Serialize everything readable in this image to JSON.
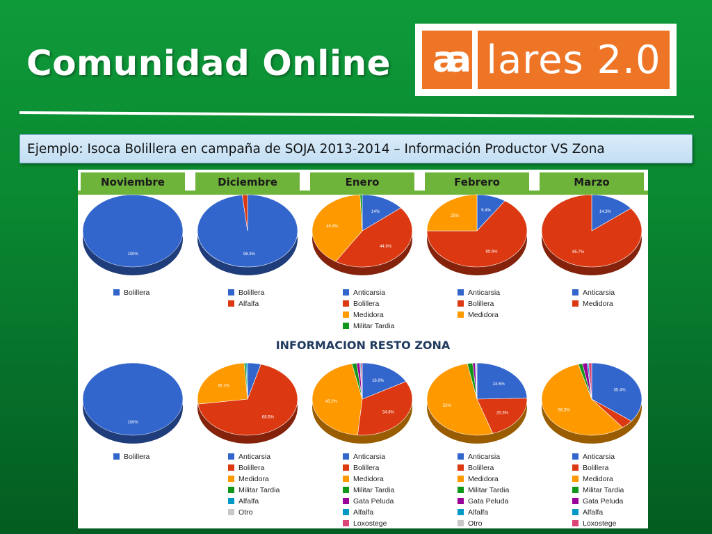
{
  "slide": {
    "title": "Comunidad Online",
    "logo_mark": "aa",
    "logo_text": "lares 2.0",
    "subtitle": "Ejemplo: Isoca Bolillera en campaña de SOJA 2013-2014 – Información Productor VS Zona",
    "section_label": "INFORMACION RESTO ZONA"
  },
  "colors": {
    "Anticarsia": "#3366cc",
    "Bolillera": "#3366cc",
    "Alfalfa": "#dc3912",
    "Medidora": "#ff9900",
    "Medidora_top": "#dc3912",
    "Militar Tardia": "#109618",
    "Gata Peluda": "#990099",
    "Alfalfa_zone": "#0099c6",
    "Otro": "#c8c8c8",
    "Loxostege": "#dd4477",
    "header_green": "#6fb43a",
    "header_text": "#1b1b1b"
  },
  "months": [
    "Noviembre",
    "Diciembre",
    "Enero",
    "Febrero",
    "Marzo"
  ],
  "chart_data": [
    {
      "type": "pie",
      "group": "productor",
      "title": "Noviembre",
      "slices": [
        {
          "label": "Bolillera",
          "value": 100,
          "color": "#3366cc",
          "text": "100%"
        }
      ],
      "legend": [
        {
          "label": "Bolillera",
          "color": "#3366cc"
        }
      ]
    },
    {
      "type": "pie",
      "group": "productor",
      "title": "Diciembre",
      "slices": [
        {
          "label": "Bolillera",
          "value": 98.3,
          "color": "#3366cc",
          "text": "98.3%"
        },
        {
          "label": "Alfalfa",
          "value": 1.7,
          "color": "#dc3912",
          "text": ""
        }
      ],
      "legend": [
        {
          "label": "Bolillera",
          "color": "#3366cc"
        },
        {
          "label": "Alfalfa",
          "color": "#dc3912"
        }
      ]
    },
    {
      "type": "pie",
      "group": "productor",
      "title": "Enero",
      "slices": [
        {
          "label": "Anticarsia",
          "value": 14,
          "color": "#3366cc",
          "text": "14%"
        },
        {
          "label": "Bolillera",
          "value": 44.9,
          "color": "#dc3912",
          "text": "44.9%"
        },
        {
          "label": "Medidora",
          "value": 40.4,
          "color": "#ff9900",
          "text": "40.4%"
        },
        {
          "label": "Militar Tardia",
          "value": 0.7,
          "color": "#109618",
          "text": ""
        }
      ],
      "legend": [
        {
          "label": "Anticarsia",
          "color": "#3366cc"
        },
        {
          "label": "Bolillera",
          "color": "#dc3912"
        },
        {
          "label": "Medidora",
          "color": "#ff9900"
        },
        {
          "label": "Militar Tardia",
          "color": "#109618"
        }
      ]
    },
    {
      "type": "pie",
      "group": "productor",
      "title": "Febrero",
      "slices": [
        {
          "label": "Anticarsia",
          "value": 9.4,
          "color": "#3366cc",
          "text": "9.4%"
        },
        {
          "label": "Bolillera",
          "value": 65.6,
          "color": "#dc3912",
          "text": "65.6%"
        },
        {
          "label": "Medidora",
          "value": 25,
          "color": "#ff9900",
          "text": "25%"
        }
      ],
      "legend": [
        {
          "label": "Anticarsia",
          "color": "#3366cc"
        },
        {
          "label": "Bolillera",
          "color": "#dc3912"
        },
        {
          "label": "Medidora",
          "color": "#ff9900"
        }
      ]
    },
    {
      "type": "pie",
      "group": "productor",
      "title": "Marzo",
      "slices": [
        {
          "label": "Anticarsia",
          "value": 14.3,
          "color": "#3366cc",
          "text": "14.3%"
        },
        {
          "label": "Medidora",
          "value": 85.7,
          "color": "#dc3912",
          "text": "85.7%"
        }
      ],
      "legend": [
        {
          "label": "Anticarsia",
          "color": "#3366cc"
        },
        {
          "label": "Medidora",
          "color": "#dc3912"
        }
      ]
    },
    {
      "type": "pie",
      "group": "zona",
      "title": "Noviembre",
      "slices": [
        {
          "label": "Bolillera",
          "value": 100,
          "color": "#3366cc",
          "text": "100%"
        }
      ],
      "legend": [
        {
          "label": "Bolillera",
          "color": "#3366cc"
        }
      ]
    },
    {
      "type": "pie",
      "group": "zona",
      "title": "Diciembre",
      "slices": [
        {
          "label": "Anticarsia",
          "value": 4.3,
          "color": "#3366cc",
          "text": ""
        },
        {
          "label": "Bolillera",
          "value": 68.5,
          "color": "#dc3912",
          "text": "68.5%"
        },
        {
          "label": "Medidora",
          "value": 26.1,
          "color": "#ff9900",
          "text": "26.1%"
        },
        {
          "label": "Militar Tardia",
          "value": 0.6,
          "color": "#109618",
          "text": ""
        },
        {
          "label": "Alfalfa",
          "value": 0.5,
          "color": "#0099c6",
          "text": ""
        }
      ],
      "legend": [
        {
          "label": "Anticarsia",
          "color": "#3366cc"
        },
        {
          "label": "Bolillera",
          "color": "#dc3912"
        },
        {
          "label": "Medidora",
          "color": "#ff9900"
        },
        {
          "label": "Militar Tardia",
          "color": "#109618"
        },
        {
          "label": "Alfalfa",
          "color": "#0099c6"
        },
        {
          "label": "Otro",
          "color": "#c8c8c8"
        }
      ]
    },
    {
      "type": "pie",
      "group": "zona",
      "title": "Enero",
      "slices": [
        {
          "label": "Anticarsia",
          "value": 16.9,
          "color": "#3366cc",
          "text": "16.9%"
        },
        {
          "label": "Bolillera",
          "value": 34.6,
          "color": "#dc3912",
          "text": "34.6%"
        },
        {
          "label": "Medidora",
          "value": 45.2,
          "color": "#ff9900",
          "text": "45.2%"
        },
        {
          "label": "Militar Tardia",
          "value": 1.5,
          "color": "#109618",
          "text": ""
        },
        {
          "label": "Gata Peluda",
          "value": 1,
          "color": "#990099",
          "text": ""
        },
        {
          "label": "Alfalfa",
          "value": 0.3,
          "color": "#0099c6",
          "text": ""
        },
        {
          "label": "Loxostege",
          "value": 0.5,
          "color": "#dd4477",
          "text": ""
        }
      ],
      "legend": [
        {
          "label": "Anticarsia",
          "color": "#3366cc"
        },
        {
          "label": "Bolillera",
          "color": "#dc3912"
        },
        {
          "label": "Medidora",
          "color": "#ff9900"
        },
        {
          "label": "Militar Tardia",
          "color": "#109618"
        },
        {
          "label": "Gata Peluda",
          "color": "#990099"
        },
        {
          "label": "Alfalfa",
          "color": "#0099c6"
        },
        {
          "label": "Loxostege",
          "color": "#dd4477"
        }
      ]
    },
    {
      "type": "pie",
      "group": "zona",
      "title": "Febrero",
      "slices": [
        {
          "label": "Anticarsia",
          "value": 24.6,
          "color": "#3366cc",
          "text": "24.6%"
        },
        {
          "label": "Bolillera",
          "value": 20.3,
          "color": "#dc3912",
          "text": "20.3%"
        },
        {
          "label": "Medidora",
          "value": 52,
          "color": "#ff9900",
          "text": "52%"
        },
        {
          "label": "Militar Tardia",
          "value": 1.7,
          "color": "#109618",
          "text": ""
        },
        {
          "label": "Gata Peluda",
          "value": 0.8,
          "color": "#990099",
          "text": ""
        },
        {
          "label": "Alfalfa",
          "value": 0.3,
          "color": "#0099c6",
          "text": ""
        },
        {
          "label": "Otro",
          "value": 0.3,
          "color": "#c8c8c8",
          "text": ""
        }
      ],
      "legend": [
        {
          "label": "Anticarsia",
          "color": "#3366cc"
        },
        {
          "label": "Bolillera",
          "color": "#dc3912"
        },
        {
          "label": "Medidora",
          "color": "#ff9900"
        },
        {
          "label": "Militar Tardia",
          "color": "#109618"
        },
        {
          "label": "Gata Peluda",
          "color": "#990099"
        },
        {
          "label": "Alfalfa",
          "color": "#0099c6"
        },
        {
          "label": "Otro",
          "color": "#c8c8c8"
        }
      ]
    },
    {
      "type": "pie",
      "group": "zona",
      "title": "Marzo",
      "slices": [
        {
          "label": "Anticarsia",
          "value": 35.4,
          "color": "#3366cc",
          "text": "35.4%"
        },
        {
          "label": "Bolillera",
          "value": 4,
          "color": "#dc3912",
          "text": ""
        },
        {
          "label": "Medidora",
          "value": 56.3,
          "color": "#ff9900",
          "text": "56.3%"
        },
        {
          "label": "Militar Tardia",
          "value": 1.3,
          "color": "#109618",
          "text": ""
        },
        {
          "label": "Gata Peluda",
          "value": 1.5,
          "color": "#990099",
          "text": ""
        },
        {
          "label": "Alfalfa",
          "value": 0.5,
          "color": "#0099c6",
          "text": ""
        },
        {
          "label": "Loxostege",
          "value": 1,
          "color": "#dd4477",
          "text": ""
        }
      ],
      "legend": [
        {
          "label": "Anticarsia",
          "color": "#3366cc"
        },
        {
          "label": "Bolillera",
          "color": "#dc3912"
        },
        {
          "label": "Medidora",
          "color": "#ff9900"
        },
        {
          "label": "Militar Tardia",
          "color": "#109618"
        },
        {
          "label": "Gata Peluda",
          "color": "#990099"
        },
        {
          "label": "Alfalfa",
          "color": "#0099c6"
        },
        {
          "label": "Loxostege",
          "color": "#dd4477"
        }
      ]
    }
  ]
}
